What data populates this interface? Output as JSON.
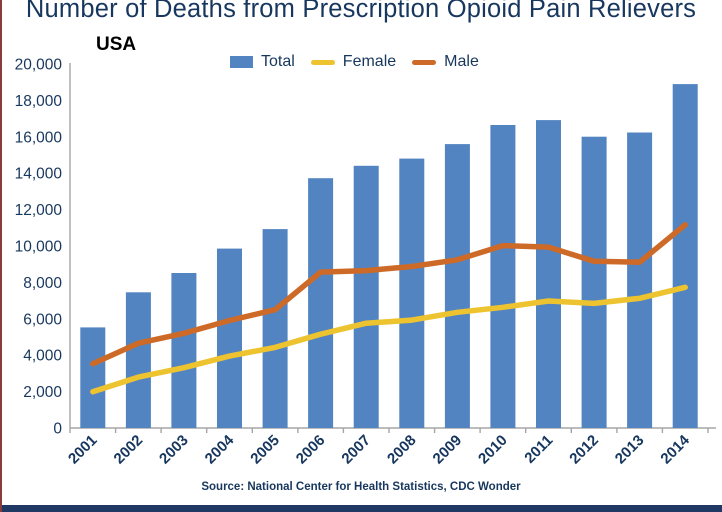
{
  "header": {
    "title": "Number of Deaths from Prescription Opioid Pain Relievers",
    "region_label": "USA"
  },
  "footer": {
    "source": "Source: National Center for Health Statistics, CDC Wonder"
  },
  "colors": {
    "bar_blue": "#5284C1",
    "female_yellow": "#EDC32F",
    "male_orange": "#CE6A28",
    "text_navy": "#17375E",
    "axis_gray": "#A6A6A6",
    "footer_bar_navy": "#1F3864",
    "left_edge_maroon": "#8A3C3C",
    "background": "#FFFFFF"
  },
  "chart_data": {
    "type": "bar",
    "subtype": "bar-with-line-overlay",
    "title": "Number of Deaths from Prescription Opioid Pain Relievers",
    "subtitle": "USA",
    "xlabel": "",
    "ylabel": "",
    "categories": [
      "2001",
      "2002",
      "2003",
      "2004",
      "2005",
      "2006",
      "2007",
      "2008",
      "2009",
      "2010",
      "2011",
      "2012",
      "2013",
      "2014"
    ],
    "series": [
      {
        "name": "Total",
        "type": "bar",
        "color": "#5284C1",
        "values": [
          5528,
          7456,
          8517,
          9857,
          10928,
          13723,
          14408,
          14800,
          15597,
          16651,
          16917,
          16007,
          16235,
          18893
        ]
      },
      {
        "name": "Female",
        "type": "line",
        "color": "#EDC32F",
        "values": [
          1997,
          2798,
          3314,
          3949,
          4427,
          5155,
          5760,
          5928,
          6357,
          6631,
          6979,
          6847,
          7124,
          7729
        ]
      },
      {
        "name": "Male",
        "type": "line",
        "color": "#CE6A28",
        "values": [
          3531,
          4658,
          5203,
          5908,
          6501,
          8568,
          8648,
          8872,
          9240,
          10020,
          9938,
          9160,
          9111,
          11164
        ]
      }
    ],
    "ylim": [
      0,
      20000
    ],
    "ytick_step": 2000,
    "ytick_labels": [
      "0",
      "2,000",
      "4,000",
      "6,000",
      "8,000",
      "10,000",
      "12,000",
      "14,000",
      "16,000",
      "18,000",
      "20,000"
    ],
    "x_tick_label_rotation_deg": -45,
    "grid": false,
    "legend_position": "top-center"
  }
}
